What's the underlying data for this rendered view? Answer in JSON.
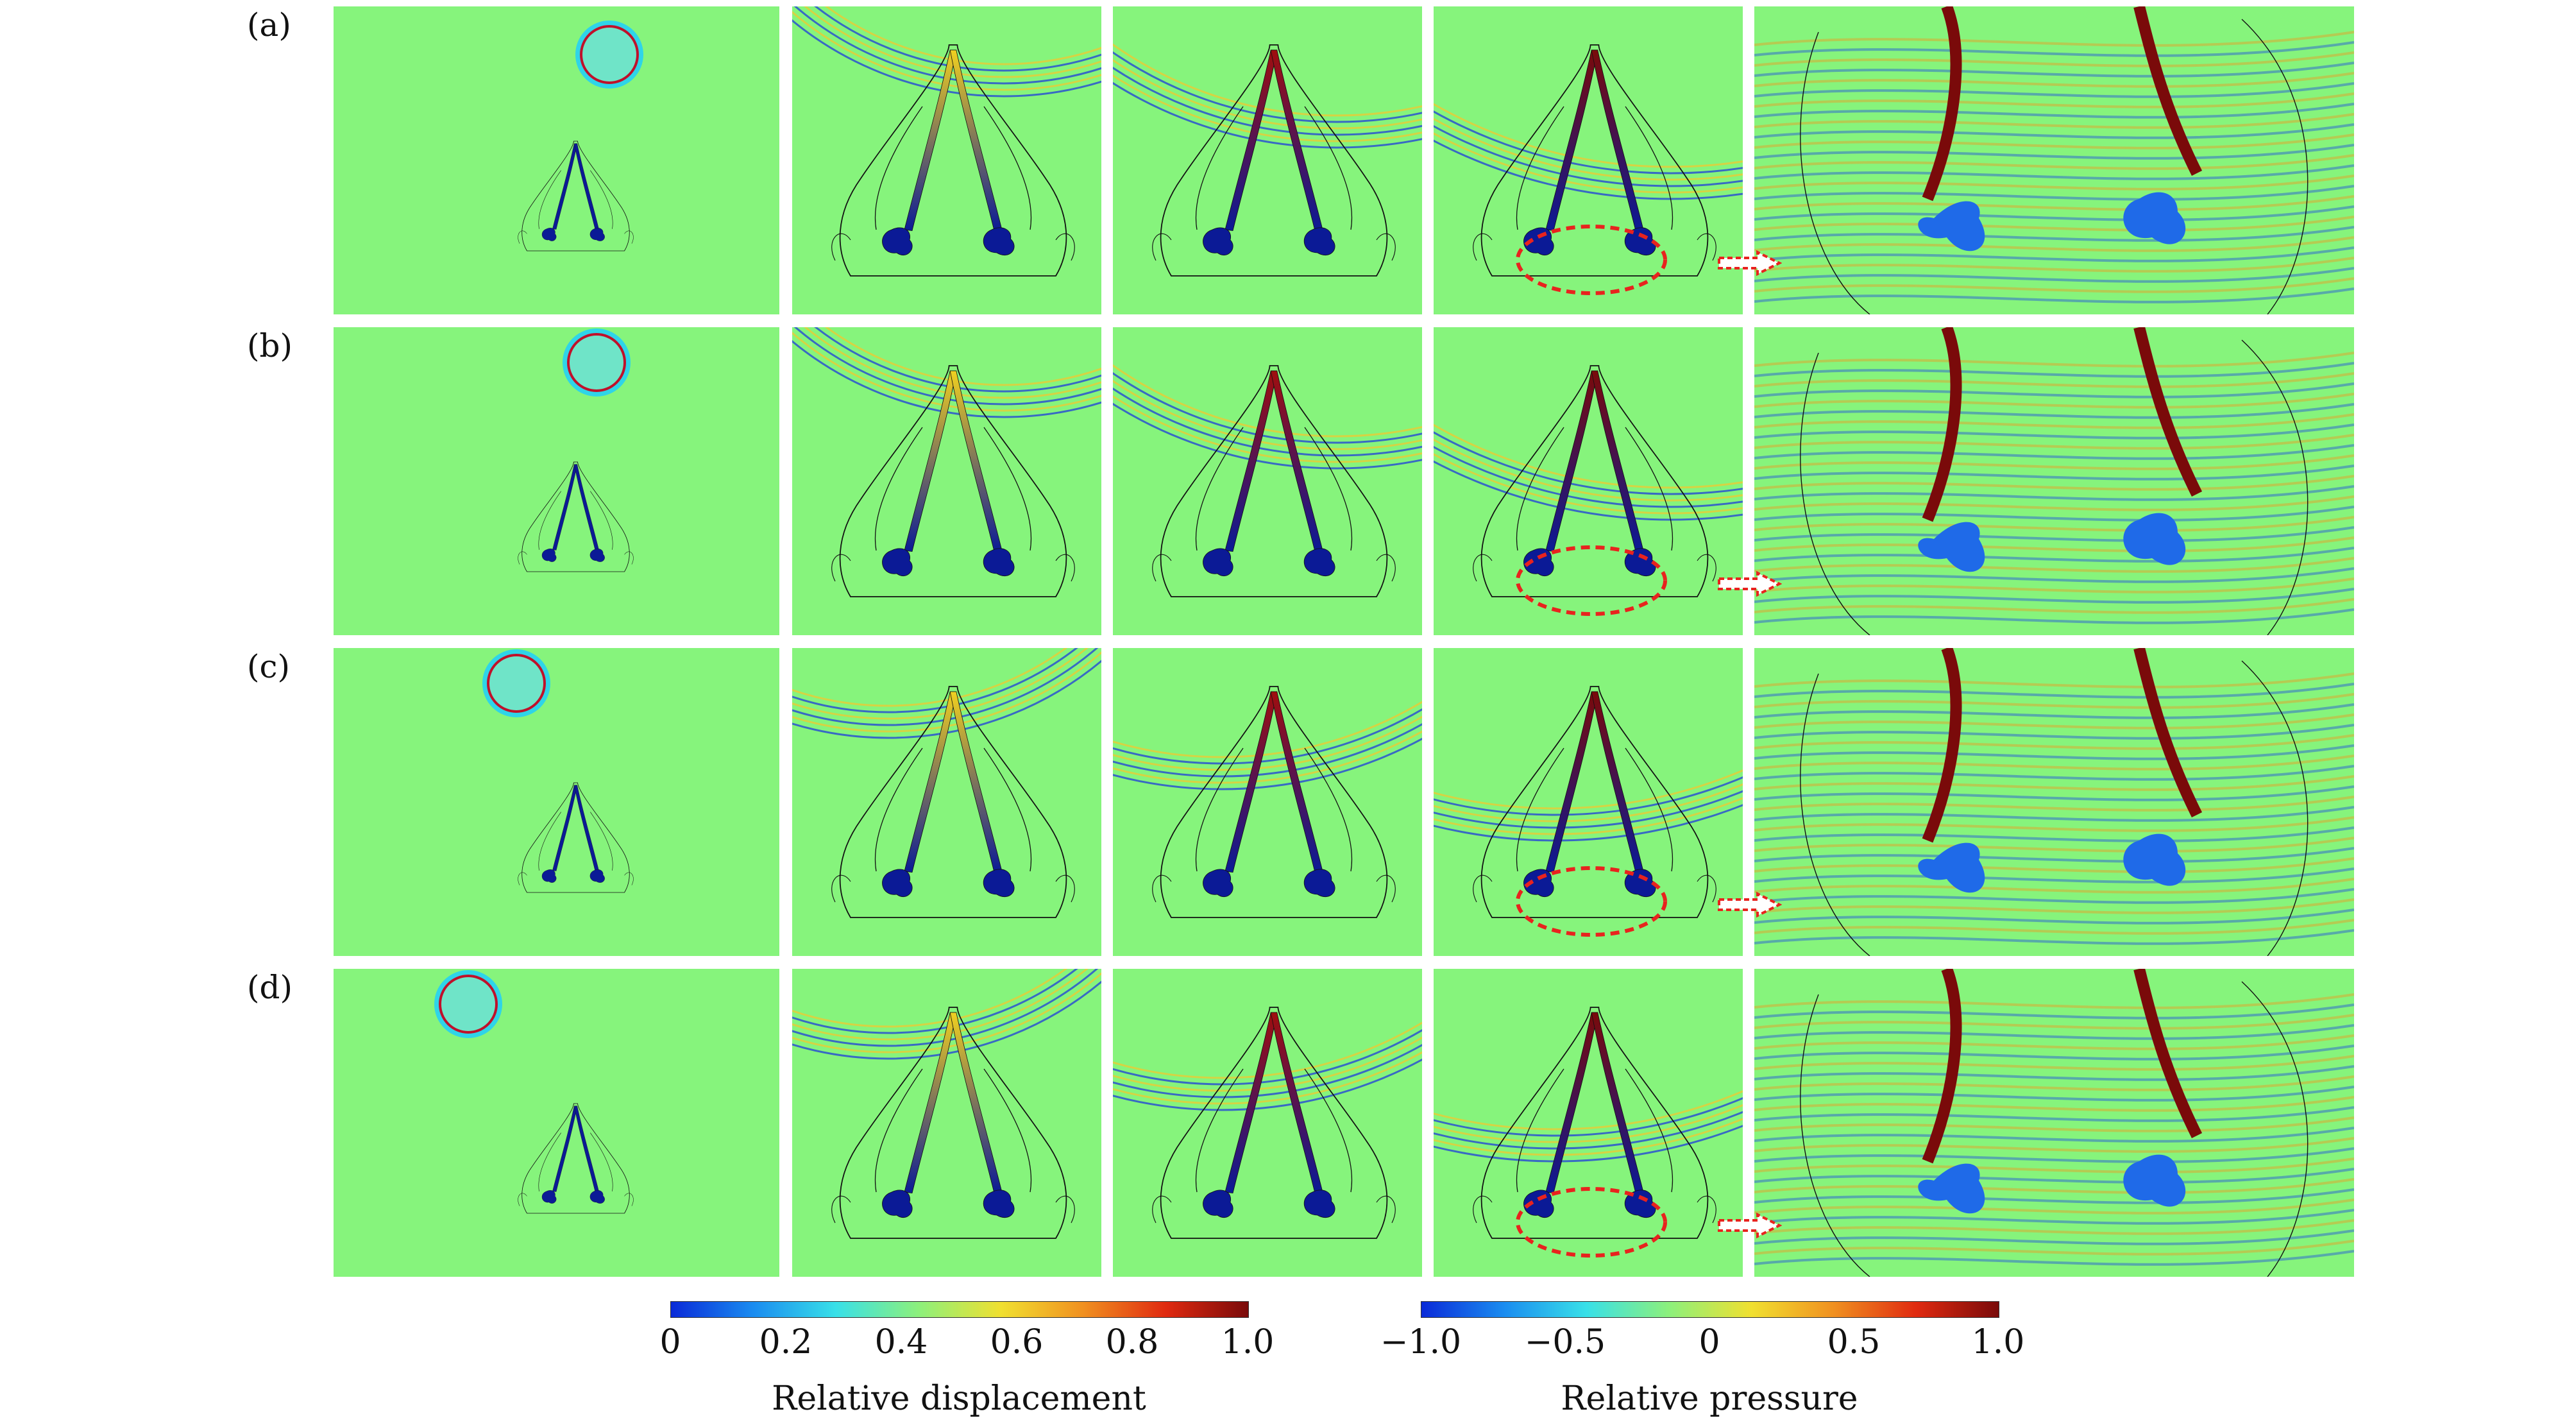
{
  "figure": {
    "row_labels": [
      "(a)",
      "(b)",
      "(c)",
      "(d)"
    ],
    "colors": {
      "background_field": "#86f47c",
      "structure_low": "#0b1a96",
      "structure_high": "#7a0a0a",
      "annotation": "#e8231e"
    }
  },
  "colorbars": {
    "displacement": {
      "title": "Relative displacement",
      "ticks": [
        "0",
        "0.2",
        "0.4",
        "0.6",
        "0.8",
        "1.0"
      ]
    },
    "pressure": {
      "title": "Relative pressure",
      "ticks": [
        "−1.0",
        "−0.5",
        "0",
        "0.5",
        "1.0"
      ]
    }
  }
}
